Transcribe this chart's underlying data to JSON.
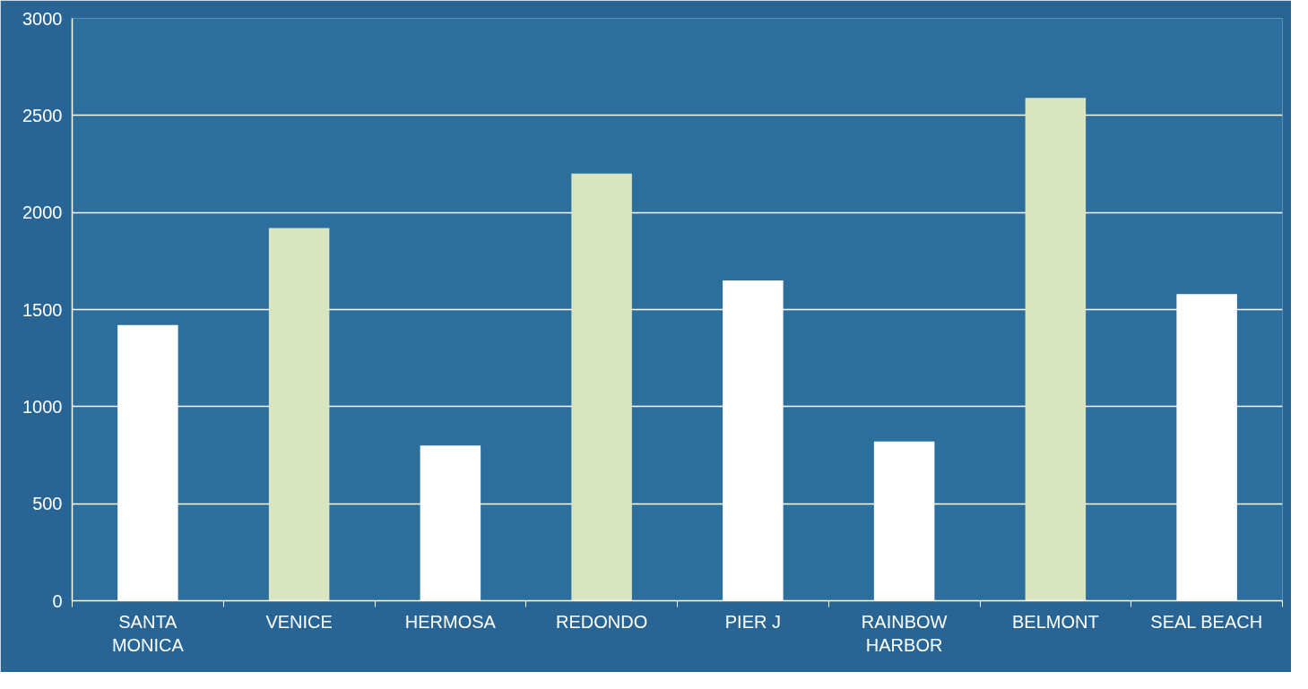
{
  "chart_data": {
    "type": "bar",
    "categories": [
      "SANTA MONICA",
      "VENICE",
      "HERMOSA",
      "REDONDO",
      "PIER J",
      "RAINBOW HARBOR",
      "BELMONT",
      "SEAL BEACH"
    ],
    "values": [
      1420,
      1920,
      800,
      2200,
      1650,
      820,
      2590,
      1580
    ],
    "colors": [
      "#ffffff",
      "#d9e4c0",
      "#ffffff",
      "#d9e4c0",
      "#ffffff",
      "#ffffff",
      "#d9e4c0",
      "#ffffff"
    ],
    "ylim": [
      0,
      3000
    ],
    "yticks": [
      0,
      500,
      1000,
      1500,
      2000,
      2500,
      3000
    ],
    "grid": "y"
  }
}
